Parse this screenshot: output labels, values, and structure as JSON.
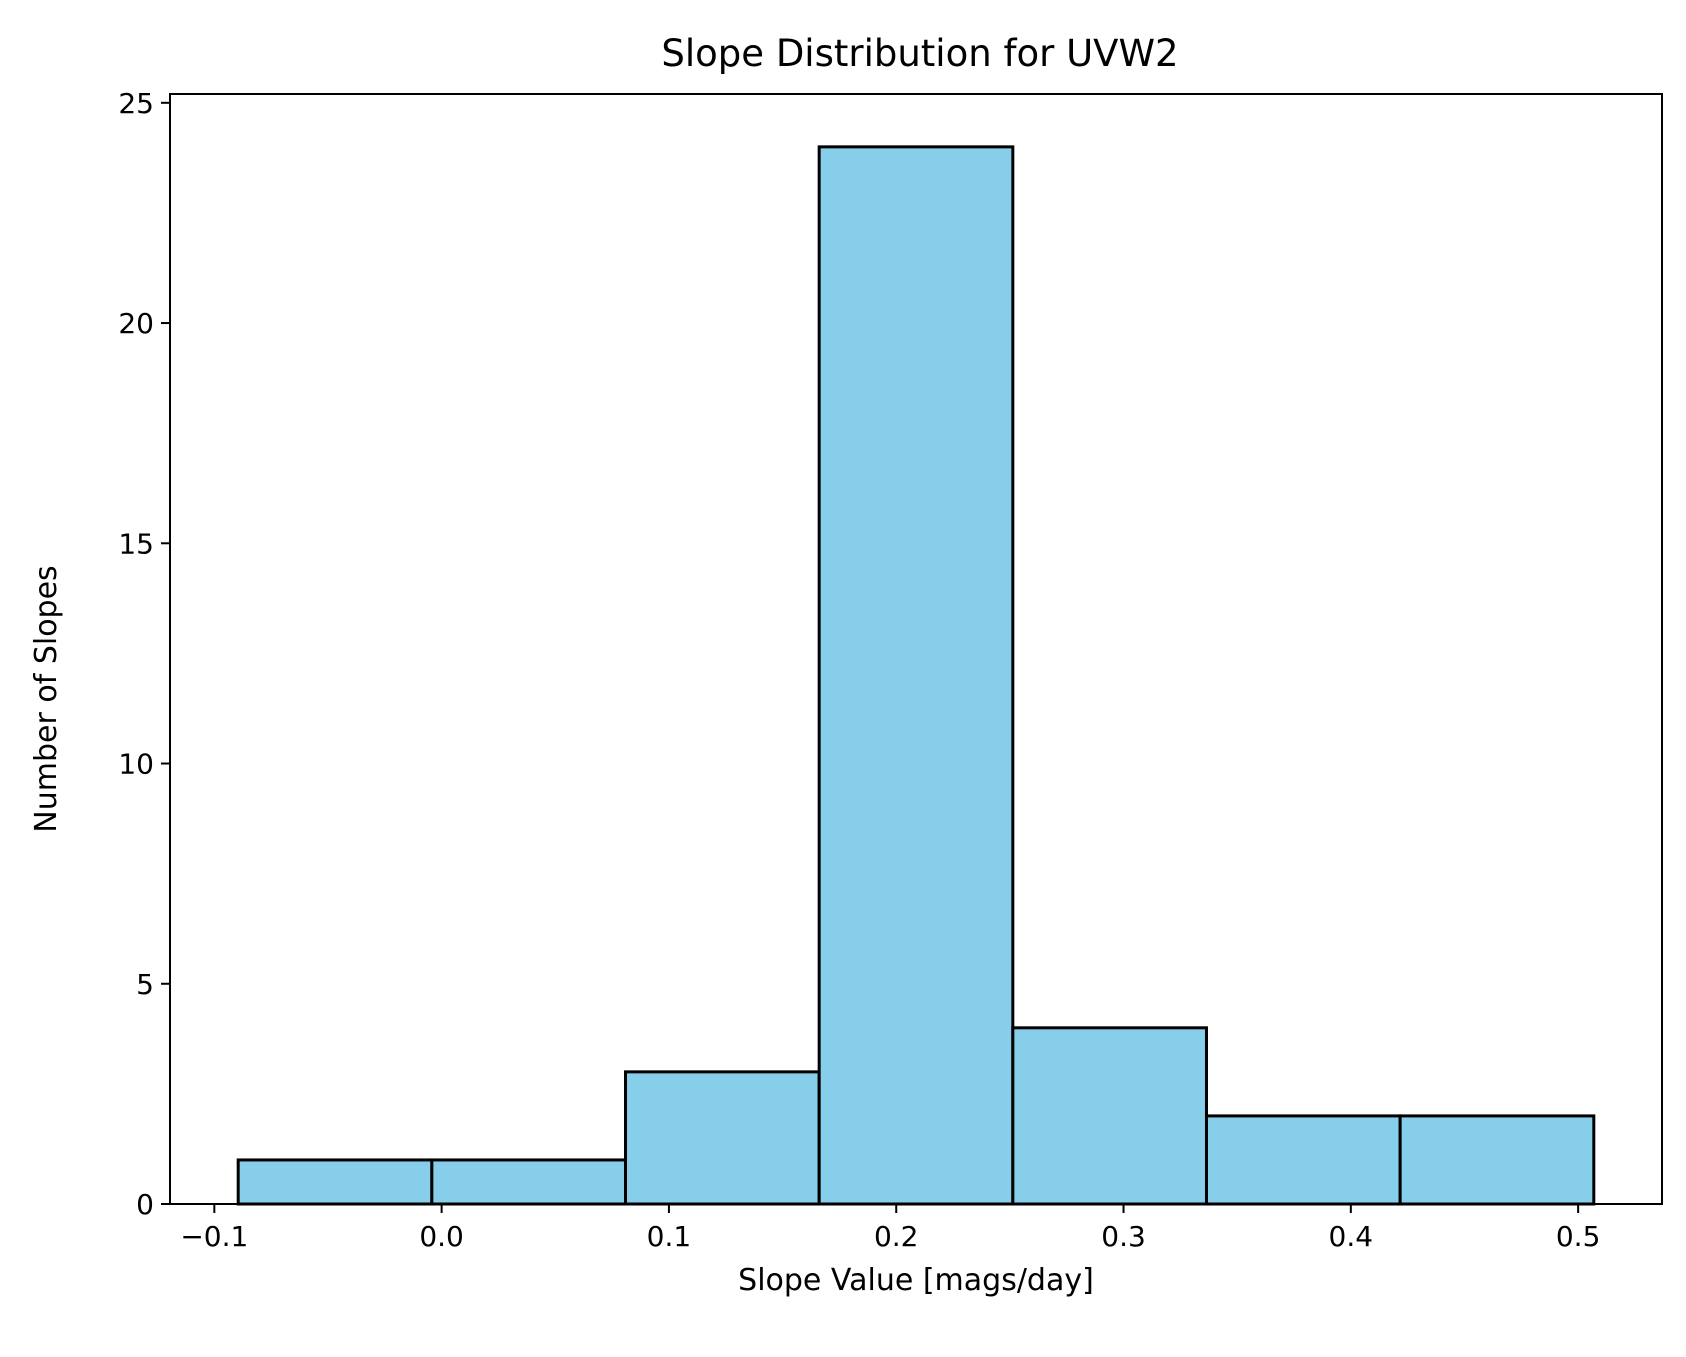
{
  "chart_data": {
    "type": "bar",
    "title": "Slope Distribution for UVW2",
    "xlabel": "Slope Value [mags/day]",
    "ylabel": "Number of Slopes",
    "bin_edges": [
      -0.0895,
      -0.0043,
      0.0809,
      0.1661,
      0.2513,
      0.3365,
      0.4217,
      0.5069
    ],
    "values": [
      1,
      1,
      3,
      24,
      4,
      2,
      2
    ],
    "xlim": [
      -0.1195,
      0.5369
    ],
    "ylim": [
      0,
      25.2
    ],
    "xticks": [
      {
        "value": -0.1,
        "label": "−0.1"
      },
      {
        "value": 0.0,
        "label": "0.0"
      },
      {
        "value": 0.1,
        "label": "0.1"
      },
      {
        "value": 0.2,
        "label": "0.2"
      },
      {
        "value": 0.3,
        "label": "0.3"
      },
      {
        "value": 0.4,
        "label": "0.4"
      },
      {
        "value": 0.5,
        "label": "0.5"
      }
    ],
    "yticks": [
      {
        "value": 0,
        "label": "0"
      },
      {
        "value": 5,
        "label": "5"
      },
      {
        "value": 10,
        "label": "10"
      },
      {
        "value": 15,
        "label": "15"
      },
      {
        "value": 20,
        "label": "20"
      },
      {
        "value": 25,
        "label": "25"
      }
    ],
    "bar_color": "#87CEEB",
    "edge_color": "#000000",
    "grid": false,
    "legend": "none"
  }
}
